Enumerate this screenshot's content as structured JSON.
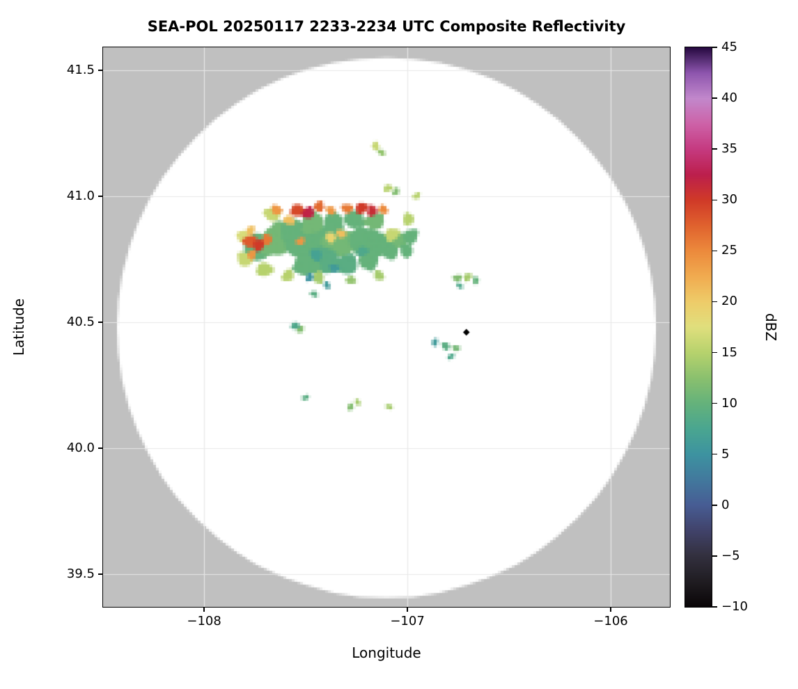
{
  "chart_data": {
    "type": "heatmap",
    "title": "SEA-POL 20250117 2233-2234 UTC Composite Reflectivity",
    "xlabel": "Longitude",
    "ylabel": "Latitude",
    "xlim": [
      -108.497,
      -105.709
    ],
    "ylim": [
      39.37,
      41.591
    ],
    "grid": true,
    "grid_color": "#e8e8e8",
    "background_outside_range": "#c0c0c0",
    "background_inside_range": "#ffffff",
    "x_ticks": [
      {
        "value": -108,
        "label": "−108"
      },
      {
        "value": -107,
        "label": "−107"
      },
      {
        "value": -106,
        "label": "−106"
      }
    ],
    "y_ticks": [
      {
        "value": 39.5,
        "label": "39.5"
      },
      {
        "value": 40.0,
        "label": "40.0"
      },
      {
        "value": 40.5,
        "label": "40.5"
      },
      {
        "value": 41.0,
        "label": "41.0"
      },
      {
        "value": 41.5,
        "label": "41.5"
      }
    ],
    "radar_coverage": {
      "center_lon": -107.099,
      "center_lat": 40.478,
      "radius_deg": 1.072
    },
    "site_marker": {
      "lon": -106.71,
      "lat": 40.46,
      "shape": "diamond",
      "color": "#000000"
    },
    "colorbar": {
      "label": "dBZ",
      "min": -10,
      "max": 45,
      "ticks": [
        {
          "value": -10,
          "label": "−10"
        },
        {
          "value": -5,
          "label": "−5"
        },
        {
          "value": 0,
          "label": "0"
        },
        {
          "value": 5,
          "label": "5"
        },
        {
          "value": 10,
          "label": "10"
        },
        {
          "value": 15,
          "label": "15"
        },
        {
          "value": 20,
          "label": "20"
        },
        {
          "value": 25,
          "label": "25"
        },
        {
          "value": 30,
          "label": "30"
        },
        {
          "value": 35,
          "label": "35"
        },
        {
          "value": 40,
          "label": "40"
        },
        {
          "value": 45,
          "label": "45"
        }
      ]
    },
    "colormap_stops": [
      [
        -10,
        "#0a0608"
      ],
      [
        -7.5,
        "#201d22"
      ],
      [
        -5,
        "#33303f"
      ],
      [
        -2.5,
        "#41436b"
      ],
      [
        0,
        "#475d94"
      ],
      [
        2.5,
        "#42799d"
      ],
      [
        5,
        "#3d93a0"
      ],
      [
        7.5,
        "#4aa690"
      ],
      [
        10,
        "#65b27b"
      ],
      [
        12.5,
        "#8bc06e"
      ],
      [
        15,
        "#b7d26d"
      ],
      [
        17.5,
        "#e0df7d"
      ],
      [
        20,
        "#eecc69"
      ],
      [
        22.5,
        "#f0ab50"
      ],
      [
        25,
        "#ec8a3c"
      ],
      [
        27.5,
        "#e0622e"
      ],
      [
        30,
        "#d03a28"
      ],
      [
        32.5,
        "#bc1f4d"
      ],
      [
        35,
        "#c53a80"
      ],
      [
        37.5,
        "#cd62a8"
      ],
      [
        40,
        "#c288cc"
      ],
      [
        42.5,
        "#8e56ae"
      ],
      [
        45,
        "#270b41"
      ]
    ],
    "echoes_dbz": [
      [
        -107.736,
        40.798,
        20,
        10
      ],
      [
        -107.634,
        40.826,
        22,
        11
      ],
      [
        -107.531,
        40.812,
        20,
        10
      ],
      [
        -107.428,
        40.826,
        22,
        10
      ],
      [
        -107.325,
        40.812,
        20,
        11
      ],
      [
        -107.223,
        40.826,
        18,
        10
      ],
      [
        -107.137,
        40.812,
        16,
        10
      ],
      [
        -107.394,
        40.743,
        18,
        9
      ],
      [
        -107.497,
        40.729,
        16,
        10
      ],
      [
        -107.291,
        40.729,
        14,
        9
      ],
      [
        -107.188,
        40.749,
        14,
        10
      ],
      [
        -107.086,
        40.79,
        13,
        10
      ],
      [
        -107.034,
        40.826,
        11,
        11
      ],
      [
        -107.565,
        40.867,
        16,
        10
      ],
      [
        -107.462,
        40.895,
        15,
        11
      ],
      [
        -107.36,
        40.895,
        14,
        10
      ],
      [
        -107.257,
        40.909,
        13,
        10
      ],
      [
        -107.154,
        40.901,
        12,
        11
      ],
      [
        -106.983,
        40.84,
        10,
        10
      ],
      [
        -107.0,
        40.785,
        9,
        10
      ],
      [
        -107.798,
        40.749,
        10,
        16
      ],
      [
        -107.702,
        40.71,
        10,
        15
      ],
      [
        -107.582,
        40.685,
        8,
        15
      ],
      [
        -107.435,
        40.677,
        8,
        14
      ],
      [
        -107.805,
        40.84,
        9,
        17
      ],
      [
        -107.658,
        40.928,
        10,
        16
      ],
      [
        -107.075,
        40.848,
        9,
        16
      ],
      [
        -106.99,
        40.909,
        8,
        15
      ],
      [
        -107.137,
        40.685,
        7,
        14
      ],
      [
        -107.274,
        40.668,
        6,
        13
      ],
      [
        -106.949,
        41.0,
        4,
        15
      ],
      [
        -107.764,
        40.768,
        6,
        24
      ],
      [
        -107.445,
        40.768,
        8,
        7
      ],
      [
        -107.356,
        40.713,
        6,
        6
      ],
      [
        -107.219,
        40.782,
        7,
        8
      ],
      [
        -107.476,
        40.677,
        5,
        5
      ],
      [
        -107.394,
        40.646,
        4,
        6
      ],
      [
        -107.455,
        40.613,
        4,
        9
      ],
      [
        -107.77,
        40.82,
        9,
        28
      ],
      [
        -107.729,
        40.807,
        8,
        30
      ],
      [
        -107.685,
        40.829,
        7,
        26
      ],
      [
        -107.64,
        40.945,
        7,
        24
      ],
      [
        -107.538,
        40.945,
        9,
        29
      ],
      [
        -107.483,
        40.934,
        8,
        32
      ],
      [
        -107.432,
        40.959,
        7,
        27
      ],
      [
        -107.373,
        40.945,
        6,
        24
      ],
      [
        -107.291,
        40.95,
        7,
        26
      ],
      [
        -107.223,
        40.953,
        8,
        30
      ],
      [
        -107.168,
        40.942,
        7,
        31
      ],
      [
        -107.116,
        40.947,
        6,
        25
      ],
      [
        -107.579,
        40.906,
        7,
        21
      ],
      [
        -107.521,
        40.82,
        5,
        24
      ],
      [
        -107.77,
        40.865,
        6,
        21
      ],
      [
        -107.373,
        40.837,
        7,
        19
      ],
      [
        -107.322,
        40.851,
        6,
        21
      ],
      [
        -107.092,
        41.033,
        5,
        15
      ],
      [
        -107.051,
        41.017,
        4,
        12
      ],
      [
        -107.154,
        41.199,
        5,
        16
      ],
      [
        -107.123,
        41.174,
        4,
        13
      ],
      [
        -106.75,
        40.674,
        5,
        12
      ],
      [
        -106.702,
        40.68,
        5,
        14
      ],
      [
        -106.658,
        40.666,
        4,
        10
      ],
      [
        -106.74,
        40.644,
        3,
        8
      ],
      [
        -107.548,
        40.486,
        5,
        8
      ],
      [
        -107.521,
        40.47,
        4,
        12
      ],
      [
        -106.863,
        40.42,
        4,
        6
      ],
      [
        -106.808,
        40.406,
        5,
        9
      ],
      [
        -106.757,
        40.395,
        4,
        11
      ],
      [
        -106.784,
        40.365,
        3,
        8
      ],
      [
        -107.274,
        40.163,
        4,
        12
      ],
      [
        -107.243,
        40.182,
        3,
        14
      ],
      [
        -107.086,
        40.166,
        3,
        14
      ],
      [
        -107.497,
        40.199,
        3,
        9
      ]
    ]
  }
}
